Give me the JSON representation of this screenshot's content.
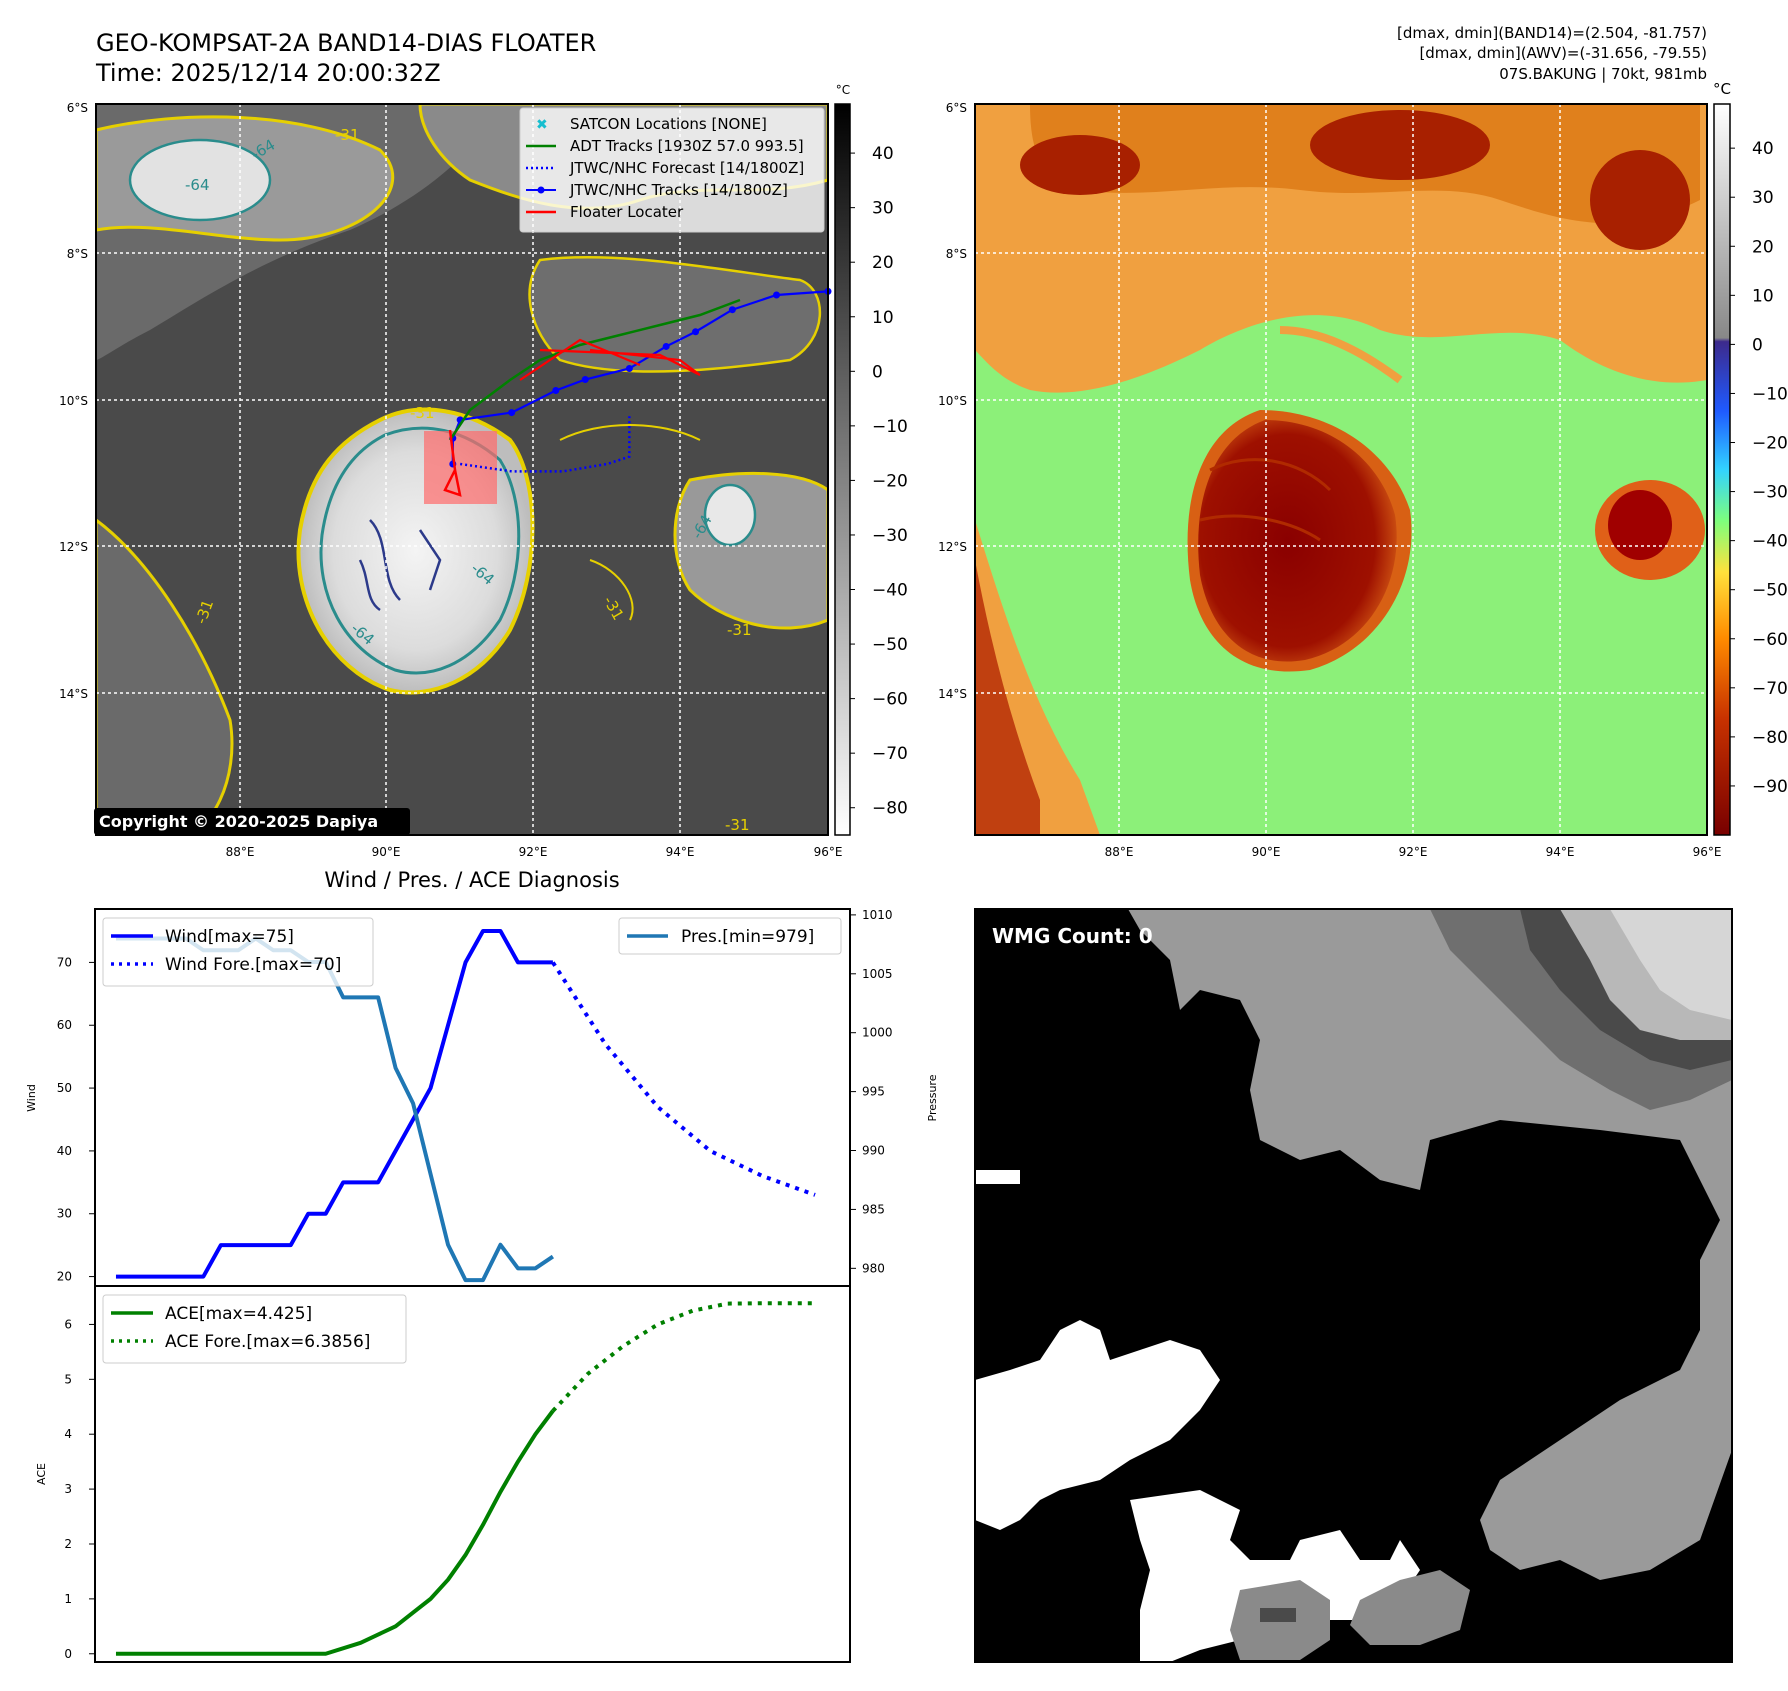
{
  "title": {
    "line1": "GEO-KOMPSAT-2A BAND14-DIAS FLOATER",
    "line2": "Time: 2025/12/14 20:00:32Z"
  },
  "info": {
    "line1": "[dmax, dmin](BAND14)=(2.504, -81.757)",
    "line2": "[dmax, dmin](AWV)=(-31.656, -79.55)",
    "line3": "07S.BAKUNG | 70kt, 981mb"
  },
  "copyright": "Copyright © 2020-2025 Dapiya",
  "map": {
    "lon_ticks": [
      "88°E",
      "90°E",
      "92°E",
      "94°E",
      "96°E"
    ],
    "lat_ticks": [
      "6°S",
      "8°S",
      "10°S",
      "12°S",
      "14°S"
    ],
    "contour_labels": [
      "-64",
      "-64",
      "-31",
      "-64",
      "-31",
      "-64",
      "-31",
      "-31",
      "-31",
      "-31",
      "-64"
    ],
    "legend": [
      {
        "label": "SATCON Locations [NONE]",
        "color": "#17becf",
        "style": "x"
      },
      {
        "label": "ADT Tracks [1930Z 57.0 993.5]",
        "color": "#008000",
        "style": "solid"
      },
      {
        "label": "JTWC/NHC Forecast [14/1800Z]",
        "color": "#0000ff",
        "style": "dotted"
      },
      {
        "label": "JTWC/NHC Tracks [14/1800Z]",
        "color": "#0000ff",
        "style": "solid-marker"
      },
      {
        "label": "Floater Locater",
        "color": "#ff0000",
        "style": "solid"
      }
    ],
    "jtwc_track": [
      [
        96.0,
        -8.55
      ],
      [
        95.3,
        -8.6
      ],
      [
        94.7,
        -8.8
      ],
      [
        94.2,
        -9.1
      ],
      [
        93.8,
        -9.3
      ],
      [
        93.3,
        -9.6
      ],
      [
        92.7,
        -9.75
      ],
      [
        92.3,
        -9.9
      ],
      [
        91.7,
        -10.2
      ],
      [
        91.0,
        -10.3
      ],
      [
        90.9,
        -10.55
      ],
      [
        90.9,
        -10.9
      ]
    ],
    "jtwc_forecast": [
      [
        91.0,
        -10.9
      ],
      [
        91.7,
        -11.0
      ],
      [
        92.4,
        -11.0
      ],
      [
        93.0,
        -10.9
      ],
      [
        93.3,
        -10.8
      ],
      [
        93.3,
        -10.5
      ],
      [
        93.3,
        -10.25
      ]
    ],
    "colorbar1": {
      "unit": "°C",
      "ticks": [
        "40",
        "30",
        "20",
        "10",
        "0",
        "−10",
        "−20",
        "−30",
        "−40",
        "−50",
        "−60",
        "−70",
        "−80"
      ]
    },
    "colorbar2": {
      "unit": "°C",
      "ticks": [
        "40",
        "30",
        "20",
        "10",
        "0",
        "−10",
        "−20",
        "−30",
        "−40",
        "−50",
        "−60",
        "−70",
        "−80",
        "−90"
      ]
    }
  },
  "diag": {
    "title": "Wind / Pres. / ACE Diagnosis",
    "wind_label": "Wind",
    "pres_label": "Pressure",
    "ace_label": "ACE",
    "wind_legend": "Wind[max=75]",
    "wind_fore_legend": "Wind Fore.[max=70]",
    "pres_legend": "Pres.[min=979]",
    "ace_legend": "ACE[max=4.425]",
    "ace_fore_legend": "ACE Fore.[max=6.3856]"
  },
  "chart_data": [
    {
      "type": "line",
      "title": "Wind / Pres. / ACE Diagnosis",
      "ylabel": "Wind",
      "ylim": [
        18.5,
        78.5
      ],
      "yticks": [
        20,
        30,
        40,
        50,
        60,
        70
      ],
      "series": [
        {
          "name": "Wind[max=75]",
          "color": "#0000ff",
          "style": "solid",
          "axis": "left",
          "x": [
            0,
            1,
            2,
            3,
            4,
            5,
            6,
            7,
            8,
            9,
            10,
            11,
            12,
            13,
            14,
            15,
            16,
            17,
            18,
            19,
            20,
            21,
            22,
            23,
            24,
            25
          ],
          "values": [
            20,
            20,
            20,
            20,
            20,
            20,
            25,
            25,
            25,
            25,
            25,
            30,
            30,
            35,
            35,
            35,
            40,
            45,
            50,
            60,
            70,
            75,
            75,
            70,
            70,
            70
          ]
        },
        {
          "name": "Wind Fore.[max=70]",
          "color": "#0000ff",
          "style": "dotted",
          "axis": "left",
          "x": [
            25,
            28,
            31,
            34,
            37,
            40
          ],
          "values": [
            70,
            57,
            47,
            40,
            36,
            33
          ]
        }
      ]
    },
    {
      "type": "line",
      "ylabel": "Pressure",
      "ylim": [
        978.5,
        1010.5
      ],
      "yticks": [
        980,
        985,
        990,
        995,
        1000,
        1005,
        1010
      ],
      "series": [
        {
          "name": "Pres.[min=979]",
          "color": "#1f77b4",
          "style": "solid",
          "axis": "right",
          "x": [
            0,
            1,
            2,
            3,
            4,
            5,
            6,
            7,
            8,
            9,
            10,
            11,
            12,
            13,
            14,
            15,
            16,
            17,
            18,
            19,
            20,
            21,
            22,
            23,
            24,
            25
          ],
          "values": [
            1008,
            1008,
            1008,
            1008,
            1008,
            1007,
            1007,
            1007,
            1008,
            1007,
            1007,
            1006,
            1006,
            1003,
            1003,
            1003,
            997,
            994,
            988,
            982,
            979,
            979,
            982,
            980,
            980,
            981
          ]
        }
      ]
    },
    {
      "type": "line",
      "ylabel": "ACE",
      "ylim": [
        -0.15,
        6.7
      ],
      "yticks": [
        0,
        1,
        2,
        3,
        4,
        5,
        6
      ],
      "series": [
        {
          "name": "ACE[max=4.425]",
          "color": "#008000",
          "style": "solid",
          "x": [
            0,
            2,
            4,
            6,
            8,
            10,
            12,
            14,
            15,
            16,
            17,
            18,
            19,
            20,
            21,
            22,
            23,
            24,
            25
          ],
          "values": [
            0,
            0,
            0,
            0,
            0,
            0,
            0,
            0.2,
            0.35,
            0.5,
            0.75,
            1.0,
            1.35,
            1.8,
            2.35,
            2.95,
            3.5,
            4.0,
            4.425
          ]
        },
        {
          "name": "ACE Fore.[max=6.3856]",
          "color": "#008000",
          "style": "dotted",
          "x": [
            25,
            27,
            29,
            31,
            33,
            35,
            37,
            40
          ],
          "values": [
            4.425,
            5.1,
            5.6,
            6.0,
            6.25,
            6.38,
            6.3856,
            6.3856
          ]
        }
      ]
    }
  ],
  "wmg": {
    "label": "WMG Count: 0"
  }
}
